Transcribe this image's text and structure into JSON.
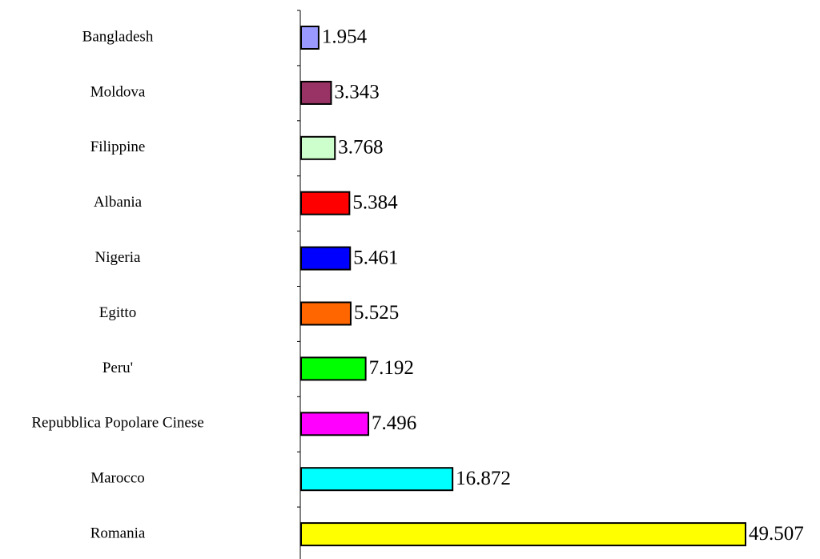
{
  "chart_data": {
    "type": "bar",
    "orientation": "horizontal",
    "categories": [
      "Bangladesh",
      "Moldova",
      "Filippine",
      "Albania",
      "Nigeria",
      "Egitto",
      "Peru'",
      "Repubblica Popolare Cinese",
      "Marocco",
      "Romania"
    ],
    "values": [
      1954,
      3343,
      3768,
      5384,
      5461,
      5525,
      7192,
      7496,
      16872,
      49507
    ],
    "value_labels": [
      "1.954",
      "3.343",
      "3.768",
      "5.384",
      "5.461",
      "5.525",
      "7.192",
      "7.496",
      "16.872",
      "49.507"
    ],
    "colors": [
      "#9999ff",
      "#993366",
      "#ccffcc",
      "#ff0000",
      "#0000ff",
      "#ff6600",
      "#00ff00",
      "#ff00ff",
      "#00ffff",
      "#ffff00"
    ],
    "title": "",
    "xlabel": "",
    "ylabel": "",
    "xlim": [
      0,
      49507
    ],
    "grid": false,
    "legend": "none"
  }
}
